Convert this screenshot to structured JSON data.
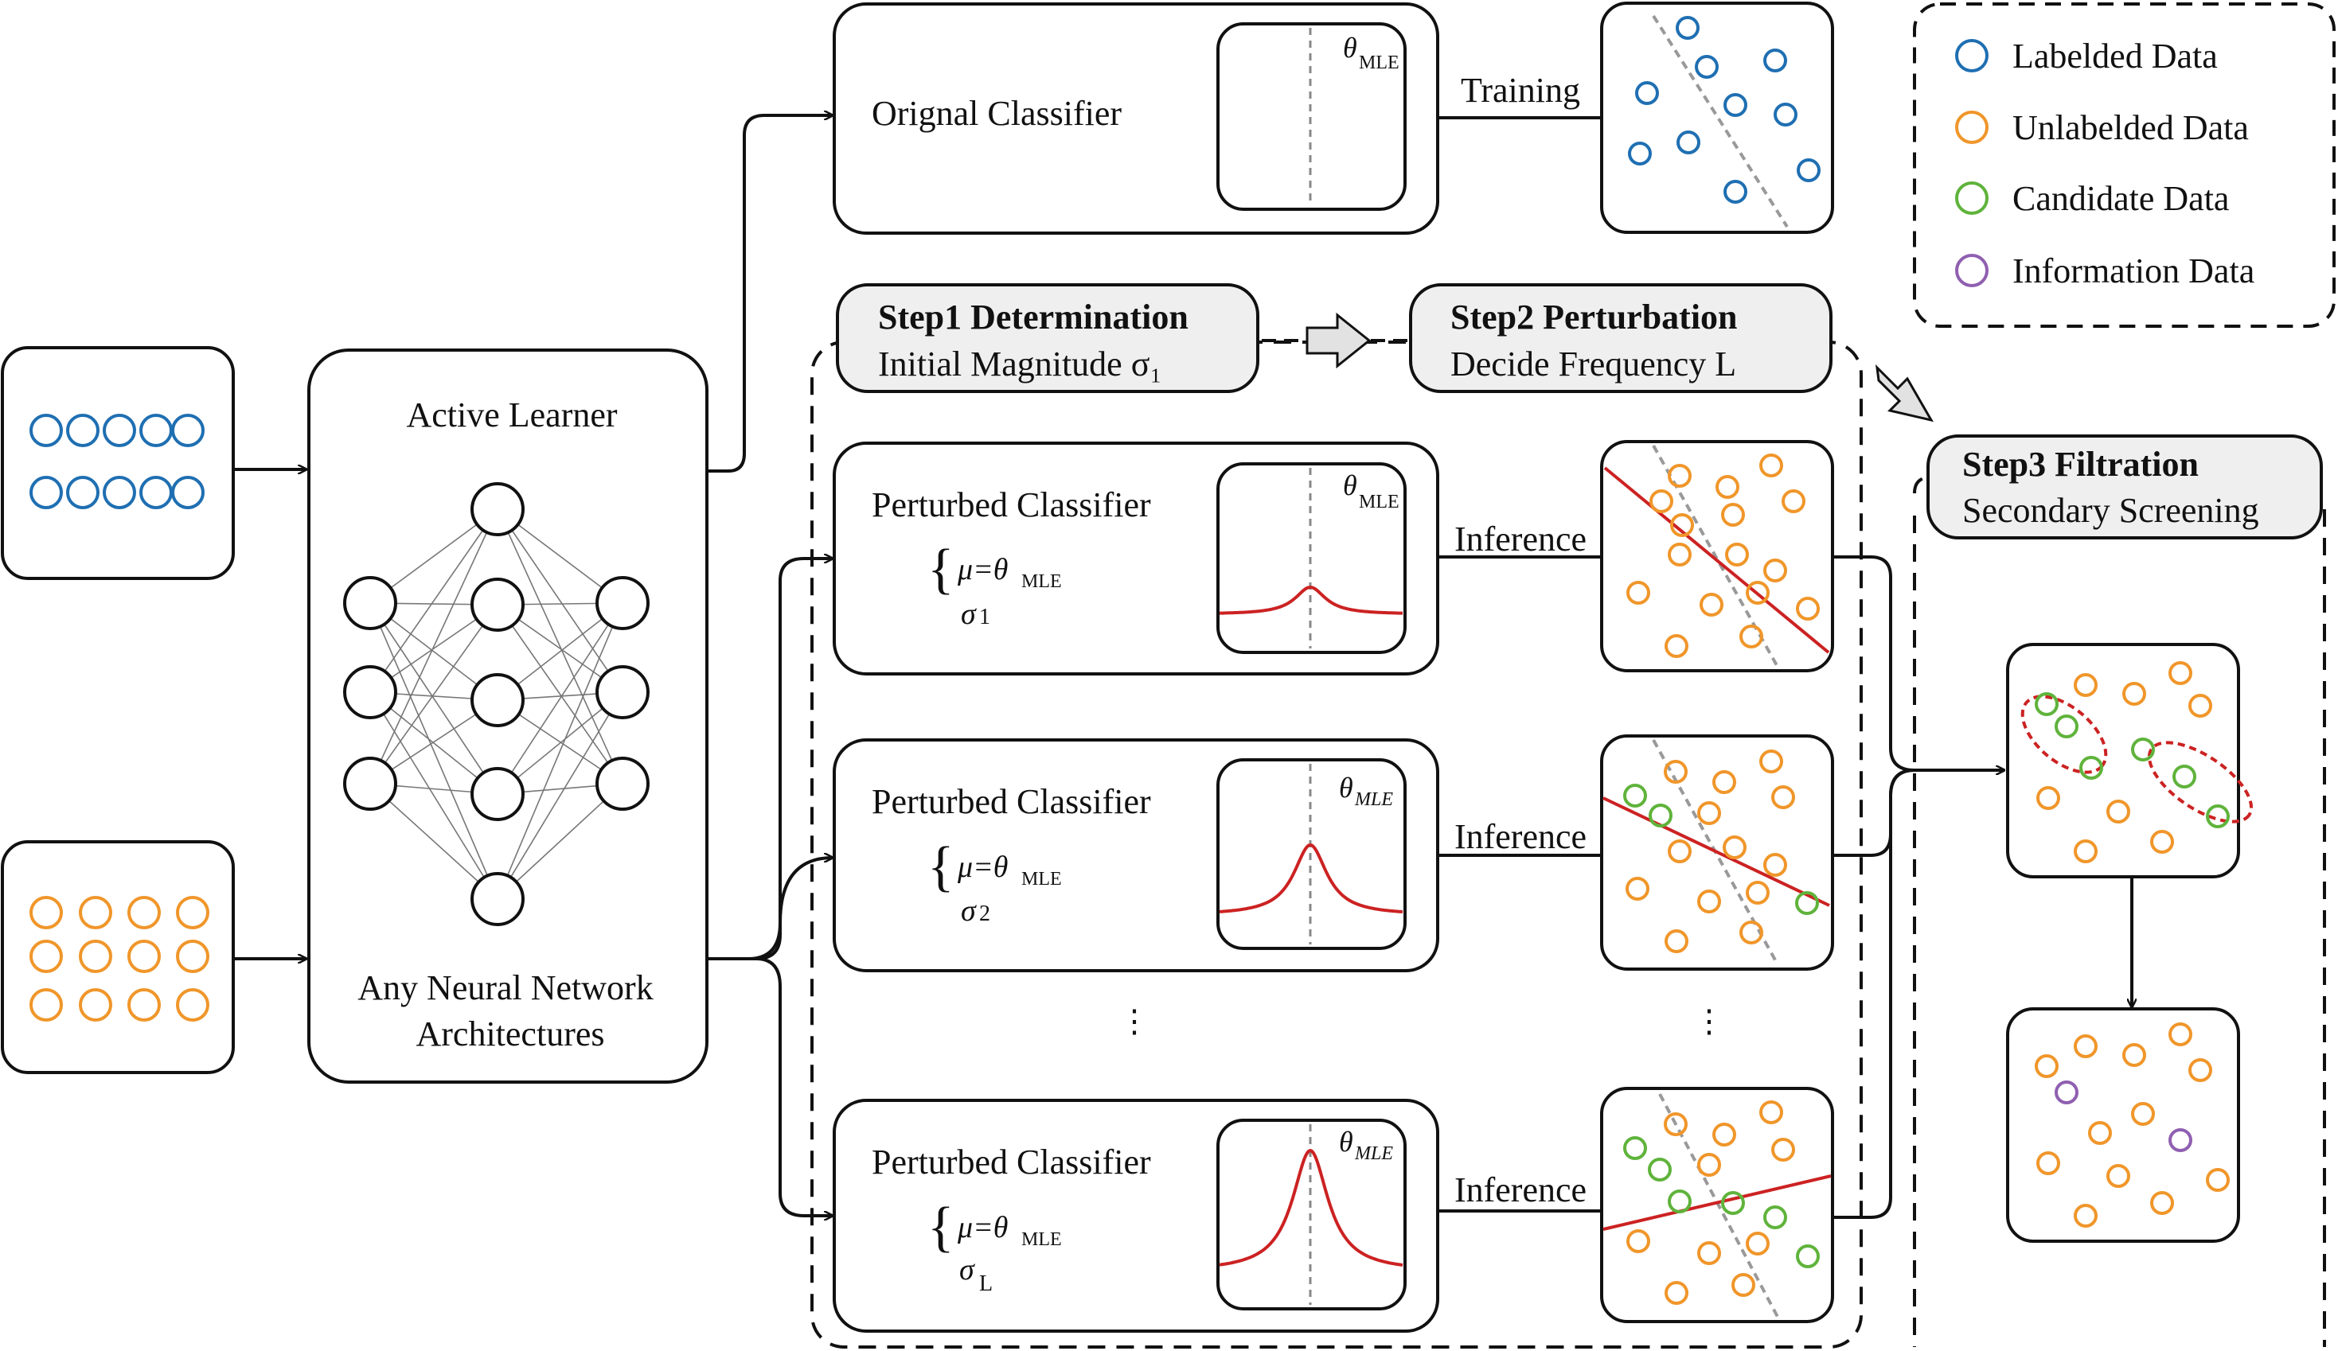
{
  "legend": {
    "labeled": "Labelded Data",
    "unlabeled": "Unlabelded Data",
    "candidate": "Candidate Data",
    "information": "Information Data"
  },
  "colors": {
    "labeled": "#1f6fb2",
    "unlabeled": "#f0962a",
    "candidate": "#5fb33b",
    "information": "#8f5fb0",
    "curve": "#cc2222",
    "box_fill": "#efefef"
  },
  "active_learner": {
    "title": "Active Learner",
    "caption_line1": "Any Neural Network",
    "caption_line2": "Architectures"
  },
  "original": {
    "label": "Orignal Classifier",
    "theta": "θ",
    "theta_sub": "MLE",
    "arrow_label": "Training"
  },
  "steps": {
    "step1_title": "Step1 Determination",
    "step1_sub": "Initial Magnitude σ₁",
    "step2_title": "Step2 Perturbation",
    "step2_sub": "Decide Frequency L",
    "step3_title": "Step3 Filtration",
    "step3_sub": "Secondary Screening"
  },
  "perturbed": [
    {
      "label": "Perturbed Classifier",
      "mu": "μ=θ",
      "mu_sub": "MLE",
      "sigma": "σ",
      "sigma_sub": "1",
      "theta": "θ",
      "theta_sub": "MLE",
      "arrow_label": "Inference"
    },
    {
      "label": "Perturbed Classifier",
      "mu": "μ=θ",
      "mu_sub": "MLE",
      "sigma": "σ",
      "sigma_sub": "2",
      "theta": "θ",
      "theta_sub": "MLE",
      "arrow_label": "Inference"
    },
    {
      "label": "Perturbed Classifier",
      "mu": "μ=θ",
      "mu_sub": "MLE",
      "sigma": "σ",
      "sigma_sub": "L",
      "theta": "θ",
      "theta_sub": "MLE",
      "arrow_label": "Inference"
    }
  ],
  "ellipsis": "⋮"
}
